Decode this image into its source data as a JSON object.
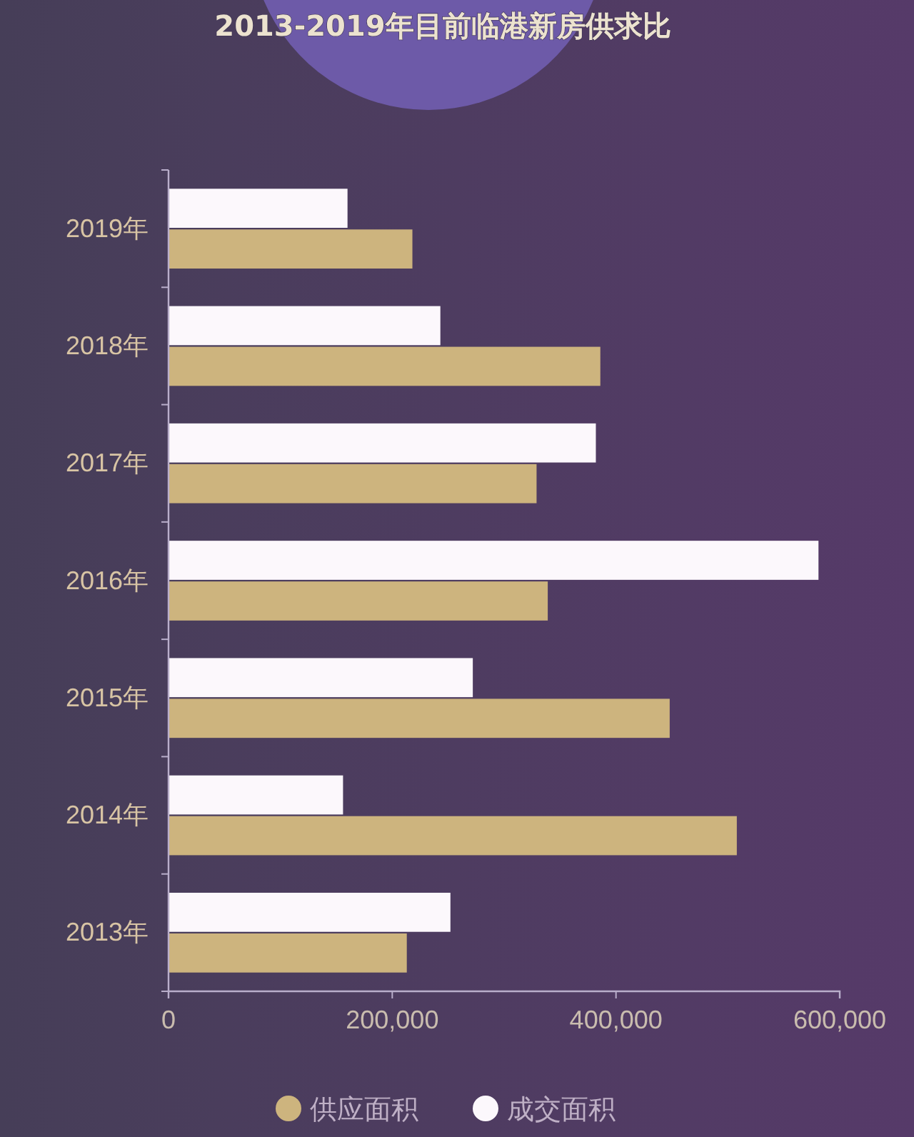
{
  "chart_data": {
    "type": "bar",
    "orientation": "horizontal",
    "title": "2013-2019年目前临港新房供求比",
    "categories": [
      "2019年",
      "2018年",
      "2017年",
      "2016年",
      "2015年",
      "2014年",
      "2013年"
    ],
    "series": [
      {
        "name": "供应面积",
        "color": "#cdb47e",
        "values": [
          218000,
          386000,
          329000,
          339000,
          448000,
          508000,
          213000
        ]
      },
      {
        "name": "成交面积",
        "color": "#fcf8fc",
        "values": [
          160000,
          243000,
          382000,
          581000,
          272000,
          156000,
          252000
        ]
      }
    ],
    "xlim": [
      0,
      600000
    ],
    "xticks": [
      0,
      {
        "value": 200000,
        "label": "200,000"
      },
      {
        "value": 400000,
        "label": "400,000"
      },
      {
        "value": 600000,
        "label": "600,000"
      }
    ],
    "legend": "bottom"
  }
}
